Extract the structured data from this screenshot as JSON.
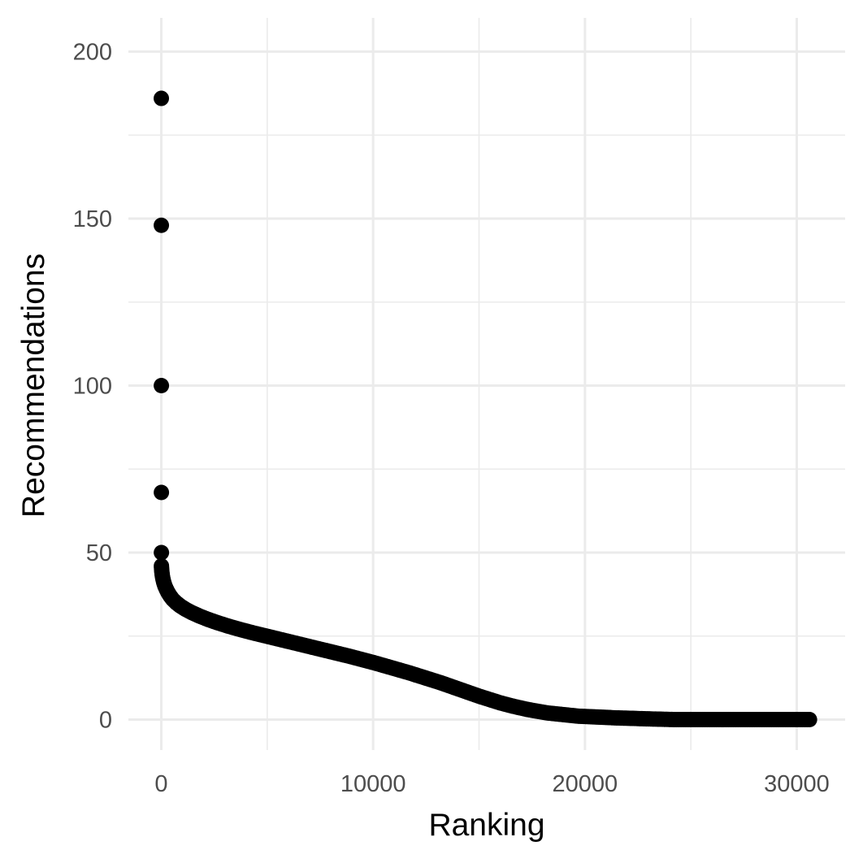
{
  "chart_data": {
    "type": "scatter",
    "title": "",
    "xlabel": "Ranking",
    "ylabel": "Recommendations",
    "xlim": [
      -1500,
      31500
    ],
    "ylim": [
      -9,
      209
    ],
    "x_ticks": [
      0,
      10000,
      20000,
      30000
    ],
    "x_tick_labels": [
      "0",
      "10000",
      "20000",
      "30000"
    ],
    "x_minor_ticks": [
      5000,
      15000,
      25000
    ],
    "y_ticks": [
      0,
      50,
      100,
      150,
      200
    ],
    "y_tick_labels": [
      "0",
      "50",
      "100",
      "150",
      "200"
    ],
    "y_minor_ticks": [
      25,
      75,
      125,
      175
    ],
    "grid": true,
    "legend": "none",
    "point_color": "#000000",
    "outlier_points": [
      {
        "x": 1,
        "y": 186
      },
      {
        "x": 2,
        "y": 148
      },
      {
        "x": 3,
        "y": 100
      },
      {
        "x": 4,
        "y": 68
      },
      {
        "x": 5,
        "y": 50
      }
    ],
    "curve_points": [
      [
        6,
        46
      ],
      [
        15,
        45
      ],
      [
        30,
        44
      ],
      [
        50,
        43
      ],
      [
        80,
        42
      ],
      [
        120,
        41
      ],
      [
        170,
        40
      ],
      [
        240,
        39
      ],
      [
        320,
        38
      ],
      [
        420,
        37
      ],
      [
        540,
        36
      ],
      [
        700,
        35
      ],
      [
        900,
        34
      ],
      [
        1150,
        33
      ],
      [
        1450,
        32
      ],
      [
        1800,
        31
      ],
      [
        2200,
        30
      ],
      [
        2650,
        29
      ],
      [
        3150,
        28
      ],
      [
        3700,
        27
      ],
      [
        4300,
        26
      ],
      [
        4950,
        25
      ],
      [
        5600,
        24
      ],
      [
        6250,
        23
      ],
      [
        6900,
        22
      ],
      [
        7550,
        21
      ],
      [
        8200,
        20
      ],
      [
        8850,
        19
      ],
      [
        9450,
        18
      ],
      [
        10050,
        17
      ],
      [
        10600,
        16
      ],
      [
        11150,
        15
      ],
      [
        11700,
        14
      ],
      [
        12200,
        13
      ],
      [
        12700,
        12
      ],
      [
        13200,
        11
      ],
      [
        13650,
        10
      ],
      [
        14100,
        9
      ],
      [
        14550,
        8
      ],
      [
        15000,
        7
      ],
      [
        15500,
        6
      ],
      [
        16000,
        5
      ],
      [
        16600,
        4
      ],
      [
        17300,
        3
      ],
      [
        18200,
        2
      ],
      [
        19700,
        1
      ],
      [
        21500,
        0.5
      ],
      [
        23000,
        0.2
      ],
      [
        24200,
        0
      ],
      [
        27000,
        0
      ],
      [
        30600,
        0
      ]
    ]
  }
}
